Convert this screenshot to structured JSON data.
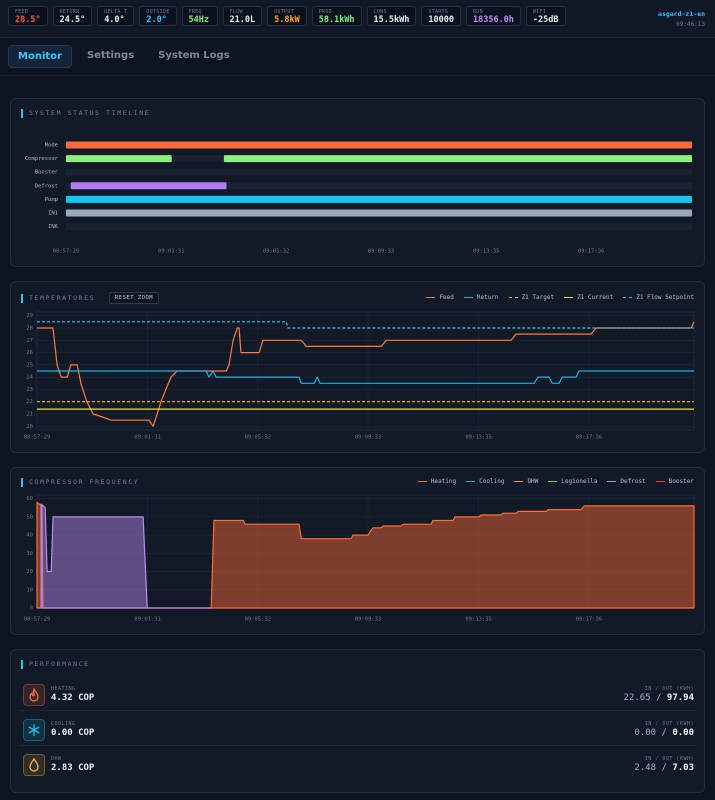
{
  "header": {
    "metrics": [
      {
        "label": "FEED",
        "value": "28.5°",
        "color": "#ff5a3c"
      },
      {
        "label": "RETURN",
        "value": "24.5°",
        "color": "#e8edf5"
      },
      {
        "label": "DELTA T",
        "value": "4.0°",
        "color": "#e8edf5"
      },
      {
        "label": "OUTSIDE",
        "value": "2.0°",
        "color": "#3cc0ff"
      },
      {
        "label": "FREQ",
        "value": "54Hz",
        "color": "#7ef07a"
      },
      {
        "label": "FLOW",
        "value": "21.0L",
        "color": "#e8edf5"
      },
      {
        "label": "OUTPUT",
        "value": "5.8kW",
        "color": "#ffa726"
      },
      {
        "label": "PROD",
        "value": "58.1kWh",
        "color": "#7ef07a"
      },
      {
        "label": "CONS",
        "value": "15.5kWh",
        "color": "#e8edf5"
      },
      {
        "label": "STARTS",
        "value": "10000",
        "color": "#e8edf5"
      },
      {
        "label": "RUN",
        "value": "18356.0h",
        "color": "#c08cff"
      },
      {
        "label": "WIFI",
        "value": "-25dB",
        "color": "#e8edf5"
      }
    ],
    "device": "asgard-z1-en",
    "time": "09:46:13"
  },
  "tabs": [
    "Monitor",
    "Settings",
    "System Logs"
  ],
  "active_tab": 0,
  "timeline": {
    "title": "SYSTEM STATUS TIMELINE",
    "xlim": [
      32249,
      33688
    ],
    "xticks": [
      {
        "value": 32249,
        "label": "08:57:29"
      },
      {
        "value": 32491,
        "label": "09:01:31"
      },
      {
        "value": 32732,
        "label": "09:05:32"
      },
      {
        "value": 32973,
        "label": "09:09:33"
      },
      {
        "value": 33215,
        "label": "09:13:35"
      },
      {
        "value": 33456,
        "label": "09:17:36"
      }
    ],
    "rows": [
      {
        "name": "Mode",
        "color": "#ff6a3a",
        "segments": [
          {
            "start": 32249,
            "end": 33688
          }
        ]
      },
      {
        "name": "Compressor",
        "color": "#8cf07a",
        "segments": [
          {
            "start": 32249,
            "end": 32492
          },
          {
            "start": 32612,
            "end": 33688
          }
        ]
      },
      {
        "name": "Booster",
        "color": "#ef3b3b",
        "segments": []
      },
      {
        "name": "Defrost",
        "color": "#b07cf0",
        "segments": [
          {
            "start": 32260,
            "end": 32618
          }
        ]
      },
      {
        "name": "Pump",
        "color": "#13c5f0",
        "segments": [
          {
            "start": 32249,
            "end": 33688
          }
        ]
      },
      {
        "name": "IN1",
        "color": "#9aa8bb",
        "segments": [
          {
            "start": 32249,
            "end": 33688
          }
        ]
      },
      {
        "name": "IN6",
        "color": "#9aa8bb",
        "segments": []
      }
    ]
  },
  "temperatures": {
    "type": "line",
    "title": "TEMPERATURES",
    "button": "RESET ZOOM",
    "xlim": [
      32249,
      33686
    ],
    "xticks": [
      {
        "value": 32249,
        "label": "08:57:29"
      },
      {
        "value": 32491,
        "label": "09:01:31"
      },
      {
        "value": 32732,
        "label": "09:05:32"
      },
      {
        "value": 32973,
        "label": "09:09:33"
      },
      {
        "value": 33215,
        "label": "09:13:35"
      },
      {
        "value": 33456,
        "label": "09:17:36"
      }
    ],
    "ylim": [
      19.7,
      29.3
    ],
    "yticks": [
      20,
      21,
      22,
      23,
      24,
      25,
      26,
      27,
      28,
      29
    ],
    "grid": true,
    "series": [
      {
        "name": "Feed",
        "color": "#ff7a3d",
        "dashed": false,
        "x": [
          32249,
          32284,
          32293,
          32302,
          32315,
          32323,
          32337,
          32345,
          32358,
          32372,
          32389,
          32411,
          32494,
          32503,
          32512,
          32520,
          32531,
          32542,
          32555,
          32663,
          32669,
          32678,
          32687,
          32691,
          32695,
          32735,
          32743,
          32827,
          32838,
          33002,
          33013,
          33286,
          33297,
          33461,
          33472,
          33680,
          33686
        ],
        "values": [
          28,
          28,
          25,
          24,
          24,
          25,
          25,
          23.5,
          22,
          21,
          20.8,
          20.5,
          20.5,
          20,
          21,
          22,
          23,
          24,
          24.5,
          24.5,
          25,
          27,
          28,
          28,
          26,
          26,
          27,
          27,
          26.5,
          26.5,
          27,
          27,
          27.5,
          27.5,
          28,
          28,
          28.5
        ]
      },
      {
        "name": "Return",
        "color": "#18b4e8",
        "dashed": false,
        "x": [
          32249,
          32619,
          32625,
          32634,
          32641,
          32822,
          32827,
          32855,
          32862,
          32868,
          33336,
          33345,
          33369,
          33376,
          33391,
          33398,
          33428,
          33435,
          33686
        ],
        "values": [
          24.5,
          24.5,
          24,
          24.5,
          24,
          24,
          23.5,
          23.5,
          24,
          23.5,
          23.5,
          24,
          24,
          23.5,
          23.5,
          24,
          24,
          24.5,
          24.5
        ]
      },
      {
        "name": "Z1 Target",
        "color": "#ffb020",
        "dashed": true,
        "x": [
          32249,
          33686
        ],
        "values": [
          22,
          22
        ]
      },
      {
        "name": "Z1 Current",
        "color": "#f7e01c",
        "dashed": false,
        "x": [
          32249,
          33686
        ],
        "values": [
          21.4,
          21.4
        ]
      },
      {
        "name": "Z1 Flow Setpoint",
        "color": "#29c6f0",
        "dashed": true,
        "x": [
          32249,
          32794,
          32798,
          33686
        ],
        "values": [
          28.5,
          28.5,
          28,
          28
        ]
      }
    ]
  },
  "compressor": {
    "type": "area",
    "title": "COMPRESSOR FREQUENCY",
    "xlim": [
      32249,
      33686
    ],
    "xticks": [
      {
        "value": 32249,
        "label": "08:57:29"
      },
      {
        "value": 32491,
        "label": "09:01:31"
      },
      {
        "value": 32732,
        "label": "09:05:32"
      },
      {
        "value": 32973,
        "label": "09:09:33"
      },
      {
        "value": 33215,
        "label": "09:13:35"
      },
      {
        "value": 33456,
        "label": "09:17:36"
      }
    ],
    "ylim": [
      0,
      62
    ],
    "yticks": [
      0,
      10,
      20,
      30,
      40,
      50,
      60
    ],
    "grid": true,
    "series": [
      {
        "name": "Heating",
        "color": "#ff6b35",
        "x": [
          32249,
          32260,
          32262,
          32630,
          32636,
          32700,
          32704,
          32822,
          32827,
          32936,
          32940,
          32973,
          32978,
          32984,
          33002,
          33006,
          33045,
          33050,
          33111,
          33115,
          33159,
          33163,
          33216,
          33220,
          33264,
          33268,
          33297,
          33301,
          33363,
          33367,
          33439,
          33446,
          33686
        ],
        "values": [
          58,
          56,
          0,
          0,
          48,
          48,
          46,
          46,
          38,
          38,
          40,
          40,
          42,
          44,
          44,
          45,
          45,
          46,
          46,
          48,
          48,
          50,
          50,
          51,
          51,
          52,
          52,
          53,
          53,
          54,
          54,
          56,
          56
        ]
      },
      {
        "name": "Cooling",
        "color": "#18b4e8"
      },
      {
        "name": "DHW",
        "color": "#ff9b3d"
      },
      {
        "name": "Legionella",
        "color": "#5ee36a"
      },
      {
        "name": "Defrost",
        "color": "#b98cf5",
        "x": [
          32258,
          32267,
          32271,
          32280,
          32284,
          32481,
          32490,
          32630
        ],
        "values": [
          57,
          55,
          20,
          20,
          50,
          50,
          0,
          0
        ]
      },
      {
        "name": "Booster",
        "color": "#ef3b3b"
      }
    ]
  },
  "performance": {
    "title": "PERFORMANCE",
    "separator": "/",
    "rows": [
      {
        "name": "HEATING",
        "cop": "4.32 COP",
        "io_label": "IN / OUT (KWH)",
        "in": "22.65",
        "out": "97.94",
        "color": "#ff6b35"
      },
      {
        "name": "COOLING",
        "cop": "0.00 COP",
        "io_label": "IN / OUT (KWH)",
        "in": "0.00",
        "out": "0.00",
        "color": "#18c0f0"
      },
      {
        "name": "DHW",
        "cop": "2.83 COP",
        "io_label": "IN / OUT (KWH)",
        "in": "2.48",
        "out": "7.03",
        "color": "#f5b73a"
      }
    ]
  }
}
